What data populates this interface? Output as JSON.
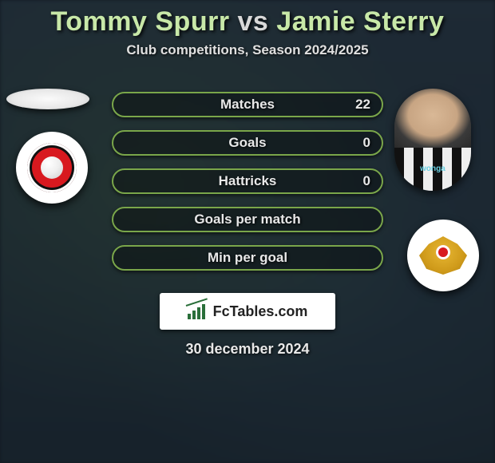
{
  "header": {
    "player1": "Tommy Spurr",
    "vs": "vs",
    "player2": "Jamie Sterry",
    "subtitle": "Club competitions, Season 2024/2025"
  },
  "stats": {
    "pill_border_color": "#7aa64a",
    "pill_text_color": "#e8e8e8",
    "rows": [
      {
        "label": "Matches",
        "value": "22"
      },
      {
        "label": "Goals",
        "value": "0"
      },
      {
        "label": "Hattricks",
        "value": "0"
      },
      {
        "label": "Goals per match",
        "value": ""
      },
      {
        "label": "Min per goal",
        "value": ""
      }
    ]
  },
  "branding": {
    "site_bold": "Fc",
    "site_rest": "Tables.com"
  },
  "footer": {
    "date": "30 december 2024"
  },
  "badges": {
    "left_club": "Fleetwood Town",
    "right_club": "Doncaster Rovers",
    "right_player_kit": "Newcastle (black/white stripes)"
  },
  "colors": {
    "background": "#1a2530",
    "title_accent": "#c8e8a8",
    "pill_border": "#7aa64a"
  }
}
